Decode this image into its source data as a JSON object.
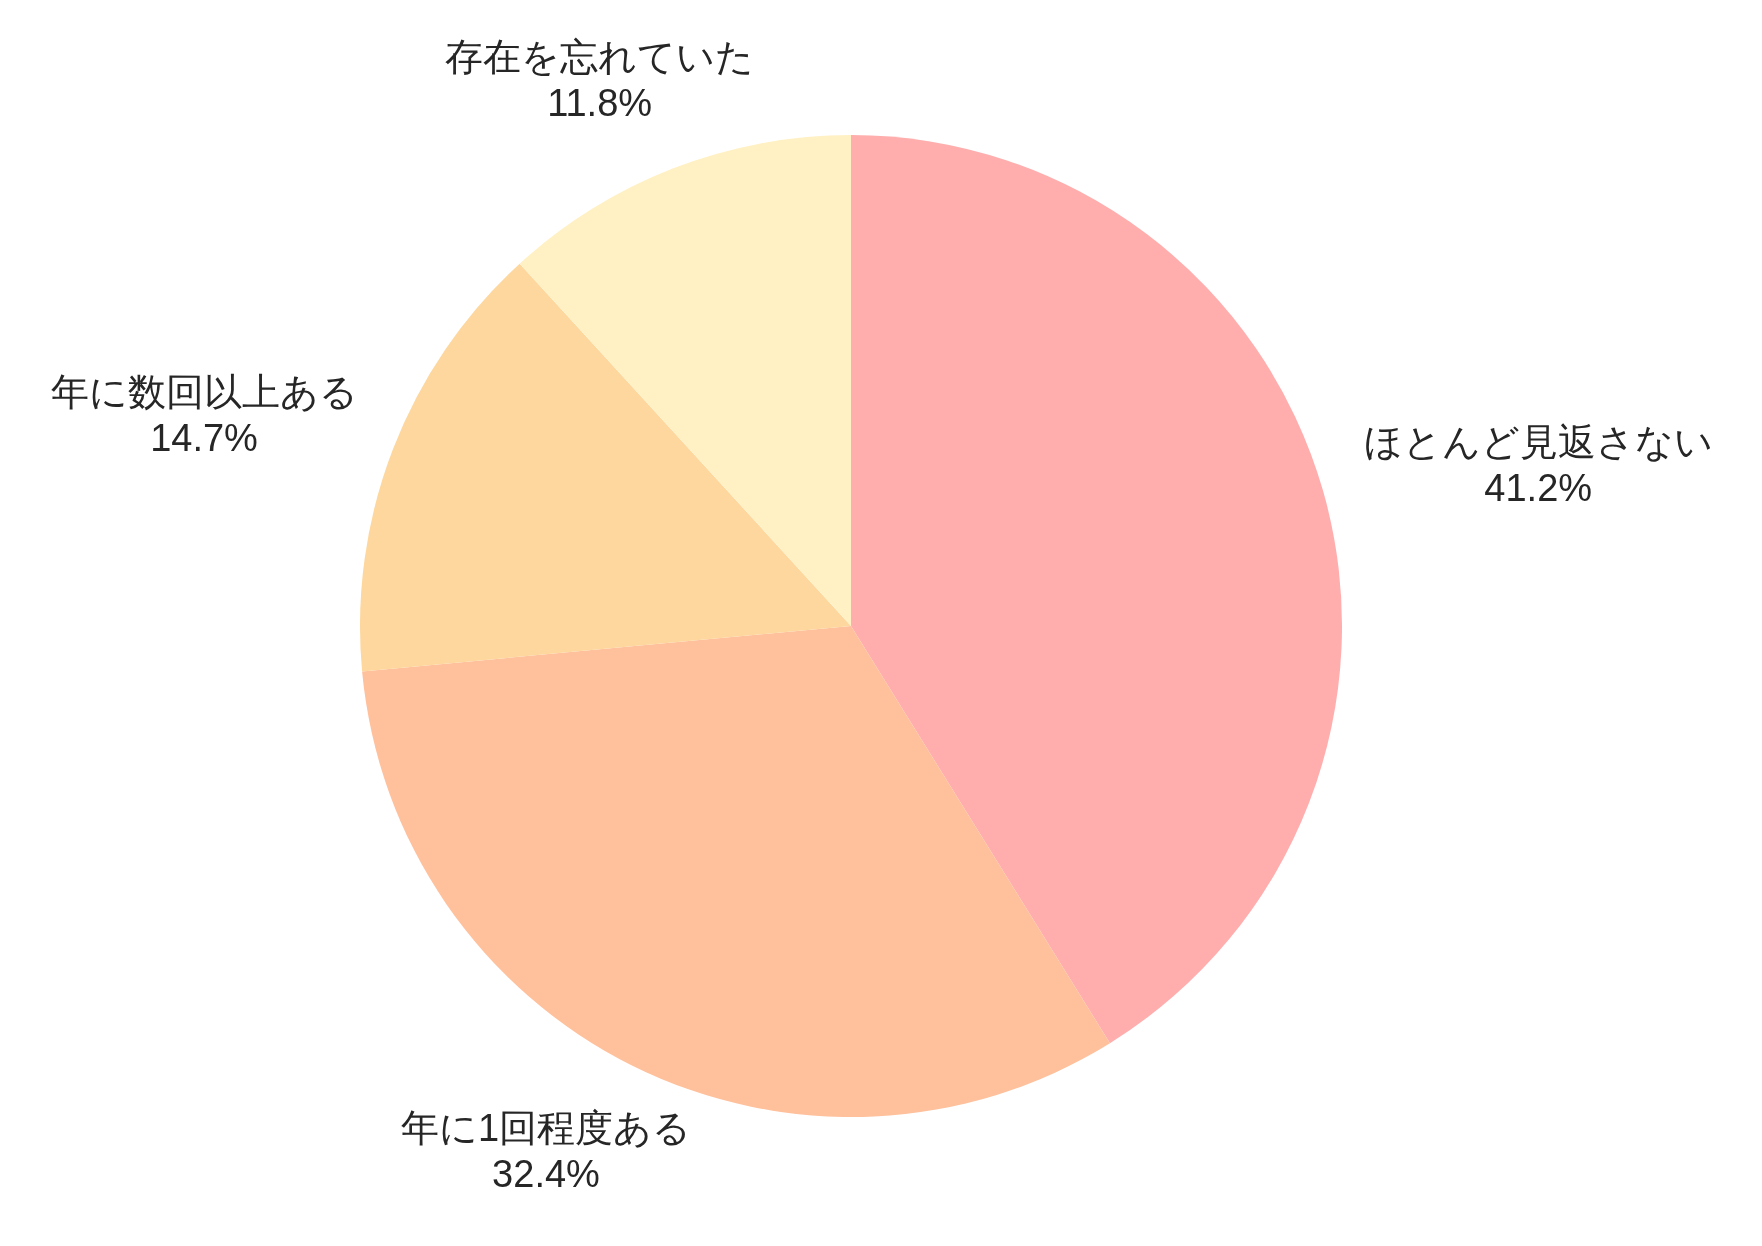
{
  "chart_data": {
    "type": "pie",
    "categories": [
      "ほとんど見返さない",
      "年に1回程度ある",
      "年に数回以上ある",
      "存在を忘れていた"
    ],
    "values": [
      41.2,
      32.4,
      14.7,
      11.8
    ],
    "colors": [
      "#ffadad",
      "#ffc09c",
      "#fdd79d",
      "#fff1c4"
    ],
    "value_labels": [
      "41.2%",
      "32.4%",
      "14.7%",
      "11.8%"
    ]
  }
}
